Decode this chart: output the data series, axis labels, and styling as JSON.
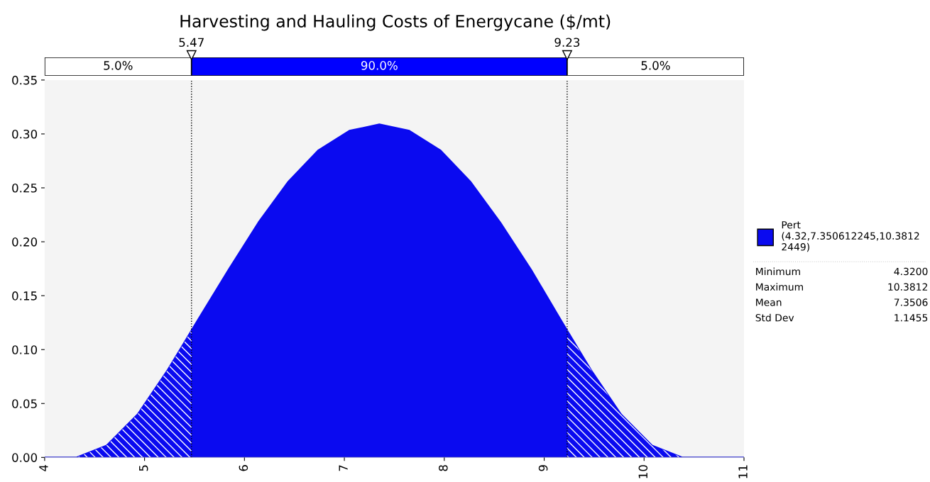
{
  "chart_data": {
    "type": "area",
    "title": "Harvesting and Hauling Costs of Energycane ($/mt)",
    "series": [
      {
        "name": "Pert\n(4.32,7.350612245,10.3812\n2449)",
        "color": "#0a0af0",
        "x": [
          4,
          4.32,
          4.62,
          4.93,
          5.23,
          5.53,
          5.84,
          6.14,
          6.44,
          6.74,
          7.05,
          7.35,
          7.65,
          7.96,
          8.26,
          8.56,
          8.87,
          9.17,
          9.47,
          9.77,
          10.08,
          10.38,
          11
        ],
        "values": [
          0,
          0,
          0.011,
          0.04,
          0.081,
          0.127,
          0.174,
          0.218,
          0.256,
          0.285,
          0.303,
          0.309,
          0.303,
          0.285,
          0.256,
          0.218,
          0.174,
          0.127,
          0.081,
          0.04,
          0.011,
          0,
          0
        ]
      }
    ],
    "xlim": [
      4,
      11
    ],
    "xticks": [
      4,
      5,
      6,
      7,
      8,
      9,
      10,
      11
    ],
    "ylim": [
      0,
      0.35
    ],
    "yticks": [
      {
        "value": 0,
        "label": "0.00"
      },
      {
        "value": 0.05,
        "label": "0.05"
      },
      {
        "value": 0.1,
        "label": "0.10"
      },
      {
        "value": 0.15,
        "label": "0.15"
      },
      {
        "value": 0.2,
        "label": "0.20"
      },
      {
        "value": 0.25,
        "label": "0.25"
      },
      {
        "value": 0.3,
        "label": "0.30"
      },
      {
        "value": 0.35,
        "label": "0.35"
      }
    ],
    "ref_lines": [
      {
        "axis": "x",
        "value": 5.47,
        "label": "5.47",
        "line_style": "dotted",
        "color": "#000000"
      },
      {
        "axis": "x",
        "value": 9.23,
        "label": "9.23",
        "line_style": "dotted",
        "color": "#000000"
      }
    ],
    "annotations": [
      "5.0%",
      "90.0%",
      "5.0%",
      "Minimum",
      "4.3200",
      "Maximum",
      "10.3812",
      "Mean",
      "7.3506",
      "Std Dev",
      "1.1455"
    ],
    "legend": "right",
    "grid": false
  }
}
